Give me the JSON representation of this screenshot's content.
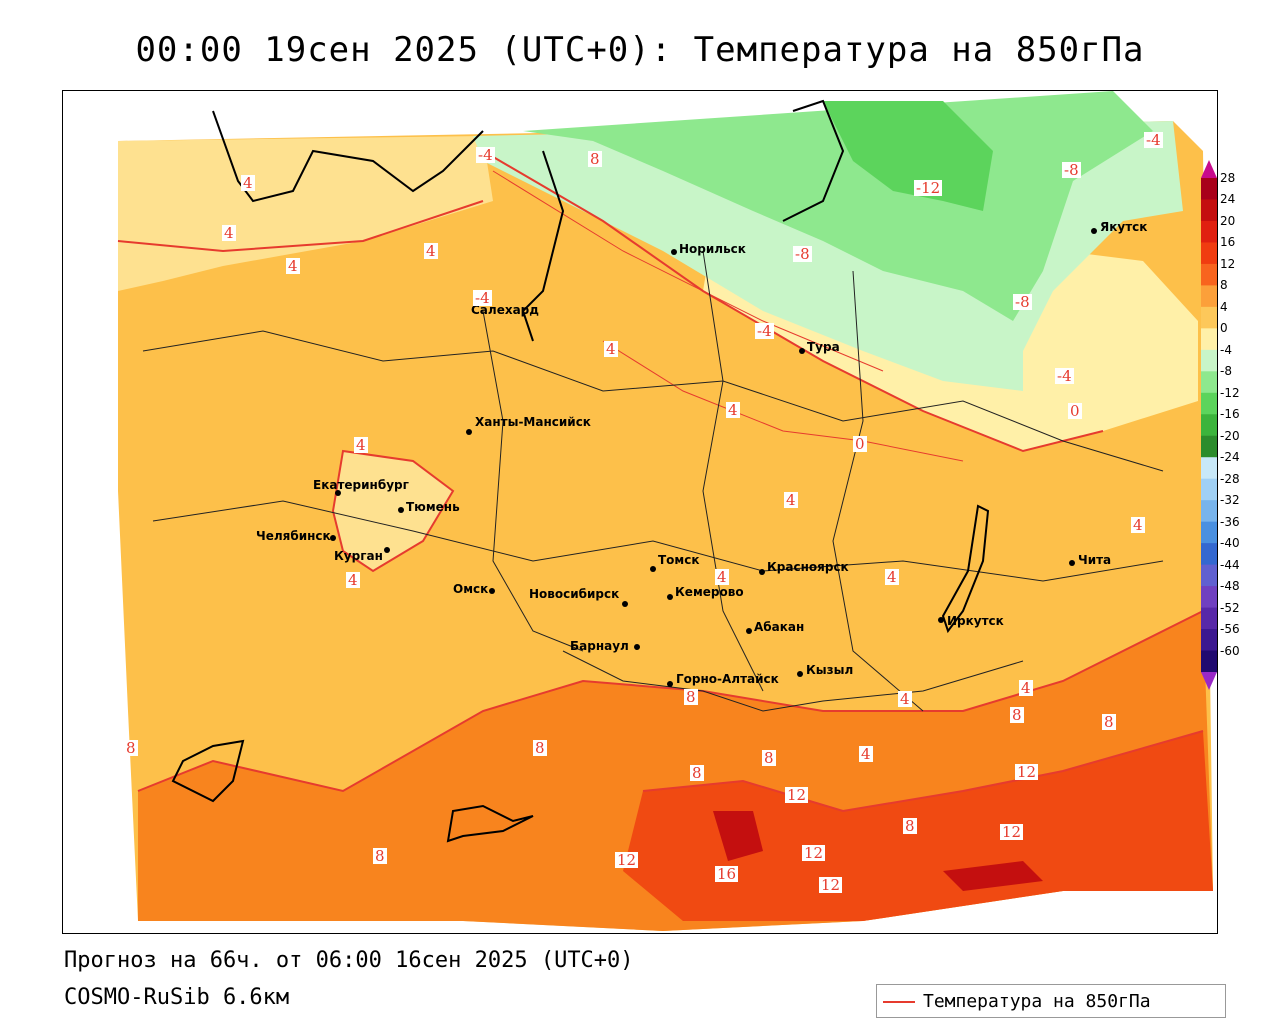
{
  "title": "00:00 19сен 2025 (UTC+0): Температура на 850гПа",
  "footer": {
    "forecast": "Прогноз на 66ч. от 06:00 16сен 2025 (UTC+0)",
    "model": "COSMO-RuSib 6.6км"
  },
  "legend": {
    "label": "Температура на 850гПа",
    "color": "#e63b2e"
  },
  "colorbar": {
    "ticks": [
      "28",
      "24",
      "20",
      "16",
      "12",
      "8",
      "4",
      "0",
      "-4",
      "-8",
      "-12",
      "-16",
      "-20",
      "-24",
      "-28",
      "-32",
      "-36",
      "-40",
      "-44",
      "-48",
      "-52",
      "-56",
      "-60"
    ],
    "colors": [
      "#a8001a",
      "#c40f0f",
      "#e02010",
      "#f03c10",
      "#f8641e",
      "#fca03a",
      "#fdc85a",
      "#fff0a8",
      "#c8f5c8",
      "#8ee88e",
      "#5cd45c",
      "#3cb43c",
      "#2c8c2c",
      "#c8e8f8",
      "#a0d0f4",
      "#78b4ec",
      "#4a90e0",
      "#3468d0",
      "#6060d0",
      "#7040c0",
      "#5828a8",
      "#3c1890",
      "#200a70"
    ]
  },
  "cities": [
    {
      "name": "Норильск"
    },
    {
      "name": "Якутск"
    },
    {
      "name": "Салехард"
    },
    {
      "name": "Тура"
    },
    {
      "name": "Ханты-Мансийск"
    },
    {
      "name": "Екатеринбург"
    },
    {
      "name": "Тюмень"
    },
    {
      "name": "Челябинск"
    },
    {
      "name": "Курган"
    },
    {
      "name": "Омск"
    },
    {
      "name": "Новосибирск"
    },
    {
      "name": "Томск"
    },
    {
      "name": "Кемерово"
    },
    {
      "name": "Красноярск"
    },
    {
      "name": "Абакан"
    },
    {
      "name": "Барнаул"
    },
    {
      "name": "Горно-Алтайск"
    },
    {
      "name": "Кызыл"
    },
    {
      "name": "Иркутск"
    },
    {
      "name": "Чита"
    }
  ],
  "contour_labels": [
    "-4",
    "8",
    "4",
    "4",
    "4",
    "4",
    "4",
    "4",
    "-8",
    "-12",
    "-8",
    "-8",
    "-4",
    "-4",
    "-4",
    "0",
    "4",
    "0",
    "4",
    "4",
    "4",
    "4",
    "4",
    "8",
    "8",
    "12",
    "8",
    "8",
    "12",
    "12",
    "16",
    "12",
    "12",
    "8",
    "8",
    "4",
    "4",
    "8",
    "4",
    "8",
    "12",
    "8",
    "-4"
  ]
}
